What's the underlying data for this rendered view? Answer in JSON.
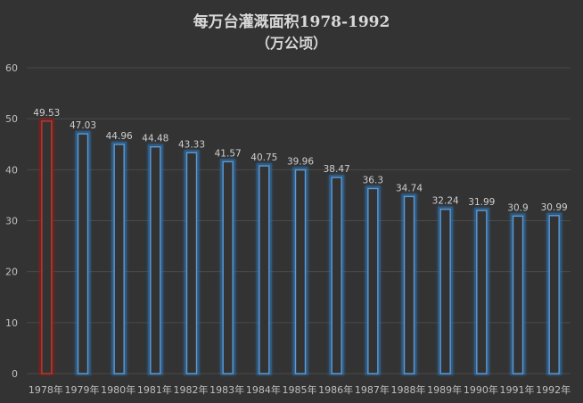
{
  "chart_data": {
    "type": "bar",
    "title": "每万台灌溉面积1978-1992",
    "subtitle": "（万公顷）",
    "xlabel": "",
    "ylabel": "",
    "categories": [
      "1978年",
      "1979年",
      "1980年",
      "1981年",
      "1982年",
      "1983年",
      "1984年",
      "1985年",
      "1986年",
      "1987年",
      "1988年",
      "1989年",
      "1990年",
      "1991年",
      "1992年"
    ],
    "values": [
      49.53,
      47.03,
      44.96,
      44.48,
      43.33,
      41.57,
      40.75,
      39.96,
      38.47,
      36.3,
      34.74,
      32.24,
      31.99,
      30.9,
      30.99
    ],
    "value_labels": [
      "49.53",
      "47.03",
      "44.96",
      "44.48",
      "43.33",
      "41.57",
      "40.75",
      "39.96",
      "38.47",
      "36.3",
      "34.74",
      "32.24",
      "31.99",
      "30.9",
      "30.99"
    ],
    "ylim": [
      0,
      60
    ],
    "yticks": [
      "0",
      "10",
      "20",
      "30",
      "40",
      "50",
      "60"
    ],
    "grid": true,
    "legend": "none",
    "colors": {
      "background": "#333333",
      "gridline": "#4a4a4a",
      "bar_edge": "#5b9bd5",
      "bar_glow": "#2e75b6",
      "highlight_edge": "#c0392b",
      "highlight_glow": "#8e1c1c"
    },
    "highlight_index": 0
  }
}
